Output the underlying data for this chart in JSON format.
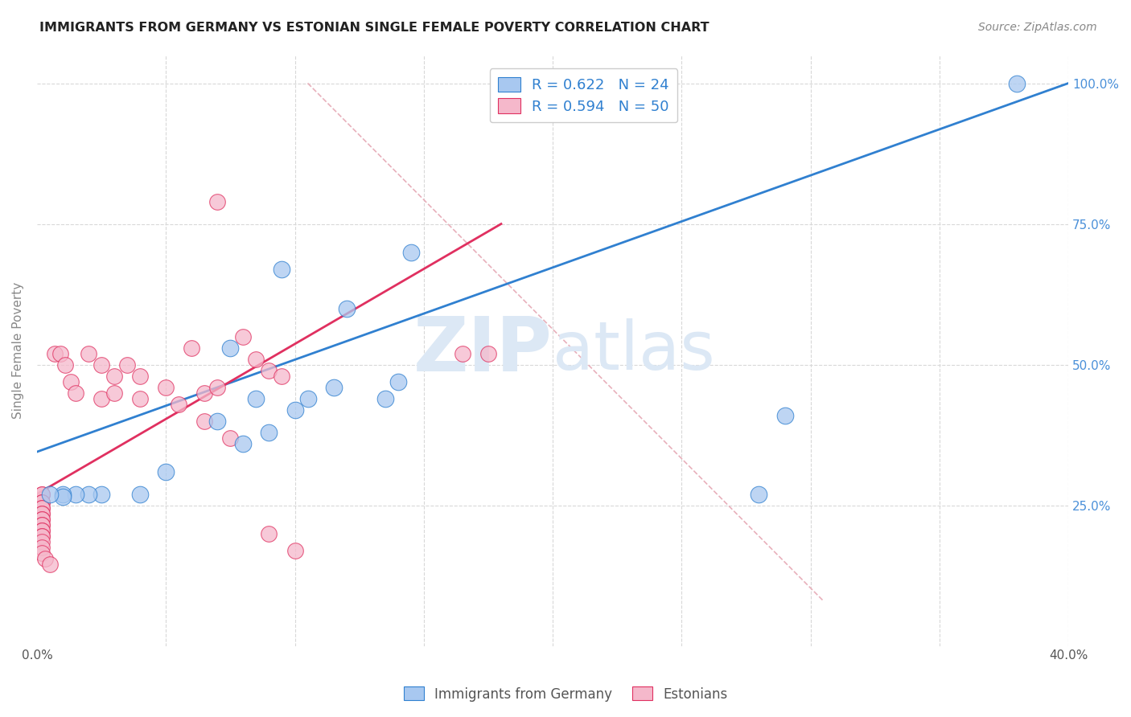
{
  "title": "IMMIGRANTS FROM GERMANY VS ESTONIAN SINGLE FEMALE POVERTY CORRELATION CHART",
  "source": "Source: ZipAtlas.com",
  "ylabel": "Single Female Poverty",
  "xlim": [
    0.0,
    0.4
  ],
  "ylim": [
    0.0,
    1.05
  ],
  "legend_blue_label": "R = 0.622   N = 24",
  "legend_pink_label": "R = 0.594   N = 50",
  "blue_scatter_x": [
    0.38,
    0.095,
    0.12,
    0.145,
    0.075,
    0.085,
    0.135,
    0.14,
    0.1,
    0.115,
    0.105,
    0.09,
    0.08,
    0.07,
    0.05,
    0.04,
    0.025,
    0.02,
    0.015,
    0.01,
    0.01,
    0.005,
    0.28,
    0.29
  ],
  "blue_scatter_y": [
    1.0,
    0.67,
    0.6,
    0.7,
    0.53,
    0.44,
    0.44,
    0.47,
    0.42,
    0.46,
    0.44,
    0.38,
    0.36,
    0.4,
    0.31,
    0.27,
    0.27,
    0.27,
    0.27,
    0.27,
    0.265,
    0.27,
    0.27,
    0.41
  ],
  "pink_scatter_x": [
    0.175,
    0.165,
    0.002,
    0.002,
    0.002,
    0.002,
    0.002,
    0.002,
    0.002,
    0.002,
    0.002,
    0.002,
    0.002,
    0.002,
    0.002,
    0.002,
    0.002,
    0.002,
    0.002,
    0.002,
    0.002,
    0.003,
    0.005,
    0.007,
    0.009,
    0.011,
    0.013,
    0.015,
    0.02,
    0.025,
    0.03,
    0.035,
    0.04,
    0.05,
    0.06,
    0.065,
    0.07,
    0.08,
    0.085,
    0.09,
    0.095,
    0.025,
    0.03,
    0.04,
    0.055,
    0.065,
    0.07,
    0.09,
    0.1,
    0.075
  ],
  "pink_scatter_y": [
    0.52,
    0.52,
    0.27,
    0.27,
    0.255,
    0.255,
    0.245,
    0.245,
    0.235,
    0.235,
    0.225,
    0.225,
    0.215,
    0.215,
    0.205,
    0.205,
    0.195,
    0.195,
    0.185,
    0.175,
    0.165,
    0.155,
    0.145,
    0.52,
    0.52,
    0.5,
    0.47,
    0.45,
    0.52,
    0.5,
    0.48,
    0.5,
    0.48,
    0.46,
    0.53,
    0.45,
    0.46,
    0.55,
    0.51,
    0.49,
    0.48,
    0.44,
    0.45,
    0.44,
    0.43,
    0.4,
    0.79,
    0.2,
    0.17,
    0.37
  ],
  "blue_line_x": [
    0.0,
    0.4
  ],
  "blue_line_y": [
    0.345,
    1.0
  ],
  "pink_line_x": [
    0.0,
    0.18
  ],
  "pink_line_y": [
    0.27,
    0.75
  ],
  "gray_line_x": [
    0.105,
    0.305
  ],
  "gray_line_y": [
    1.0,
    0.08
  ],
  "dot_color_blue": "#a8c8f0",
  "dot_color_pink": "#f5b8cb",
  "line_color_blue": "#3080d0",
  "line_color_pink": "#e03060",
  "line_color_gray": "#e8b0bb",
  "watermark_color": "#dce8f5",
  "bg_color": "#ffffff",
  "grid_color": "#d8d8d8",
  "title_color": "#222222",
  "axis_label_color": "#888888",
  "right_tick_color": "#4a90d9",
  "legend_box_color": "#ffffff",
  "legend_border_color": "#cccccc"
}
